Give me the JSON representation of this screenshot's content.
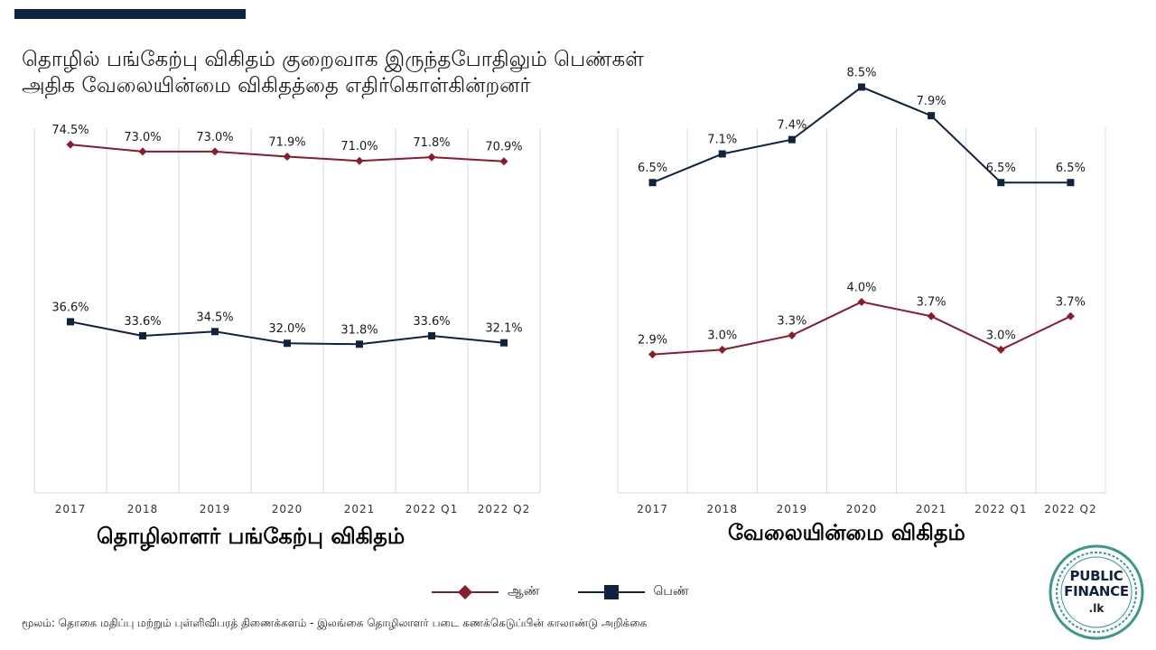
{
  "headline": {
    "line1": "தொழில் பங்கேற்பு விகிதம் குறைவாக இருந்தபோதிலும் பெண்கள்",
    "line2": "அதிக வேலையின்மை விகிதத்தை எதிர்கொள்கின்றனர்"
  },
  "colors": {
    "male": "#8b1a2b",
    "female": "#0f2340",
    "grid": "#d9d9d9",
    "bar": "#0f2340"
  },
  "chart_data": [
    {
      "type": "line",
      "title": "தொழிலாளர் பங்கேற்பு விகிதம்",
      "categories": [
        "2017",
        "2018",
        "2019",
        "2020",
        "2021",
        "2022 Q1",
        "2022 Q2"
      ],
      "ylim": [
        0,
        80
      ],
      "grid": "vertical",
      "series": [
        {
          "name": "ஆண்",
          "color": "#8b1a2b",
          "marker": "diamond",
          "values": [
            74.5,
            73.0,
            73.0,
            71.9,
            71.0,
            71.8,
            70.9
          ],
          "labels": [
            "74.5%",
            "73.0%",
            "73.0%",
            "71.9%",
            "71.0%",
            "71.8%",
            "70.9%"
          ]
        },
        {
          "name": "பெண்",
          "color": "#0f2340",
          "marker": "square",
          "values": [
            36.6,
            33.6,
            34.5,
            32.0,
            31.8,
            33.6,
            32.1
          ],
          "labels": [
            "36.6%",
            "33.6%",
            "34.5%",
            "32.0%",
            "31.8%",
            "33.6%",
            "32.1%"
          ]
        }
      ]
    },
    {
      "type": "line",
      "title": "வேலையின்மை விகிதம்",
      "categories": [
        "2017",
        "2018",
        "2019",
        "2020",
        "2021",
        "2022 Q1",
        "2022 Q2"
      ],
      "ylim": [
        0,
        9
      ],
      "grid": "vertical",
      "series": [
        {
          "name": "ஆண்",
          "color": "#8b1a2b",
          "marker": "diamond",
          "values": [
            2.9,
            3.0,
            3.3,
            4.0,
            3.7,
            3.0,
            3.7
          ],
          "labels": [
            "2.9%",
            "3.0%",
            "3.3%",
            "4.0%",
            "3.7%",
            "3.0%",
            "3.7%"
          ]
        },
        {
          "name": "பெண்",
          "color": "#0f2340",
          "marker": "square",
          "values": [
            6.5,
            7.1,
            7.4,
            8.5,
            7.9,
            6.5,
            6.5
          ],
          "labels": [
            "6.5%",
            "7.1%",
            "7.4%",
            "8.5%",
            "7.9%",
            "6.5%",
            "6.5%"
          ]
        }
      ]
    }
  ],
  "legend": {
    "male": "ஆண்",
    "female": "பெண்",
    "placement": "bottom-center"
  },
  "source": "மூலம்: தொகை மதிப்பு மற்றும் புள்ளிவிபரத் திணைக்களம் - இலங்கை தொழிலாளர் படை கணக்கெடுப்பின் காலாண்டு அறிக்கை",
  "logo": {
    "line1": "PUBLIC",
    "line2": "FINANCE",
    "line3": ".lk"
  }
}
